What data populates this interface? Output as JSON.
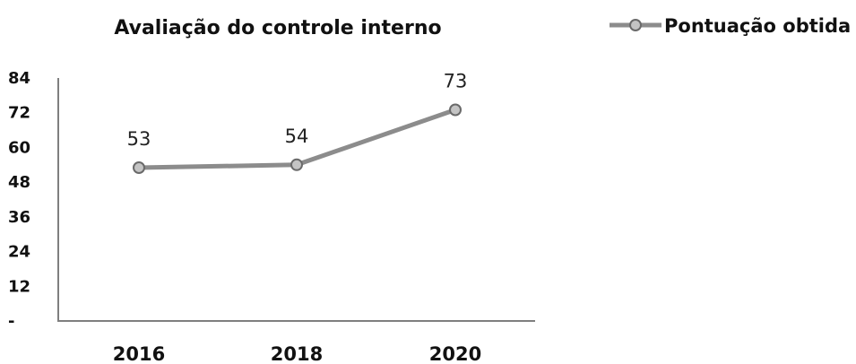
{
  "chart_data": {
    "type": "line",
    "title": "Avaliação do controle interno",
    "categories": [
      "2016",
      "2018",
      "2020"
    ],
    "series": [
      {
        "name": "Pontuação obtida",
        "values": [
          53,
          54,
          73
        ],
        "labels": [
          "53",
          "54",
          "73"
        ]
      }
    ],
    "y_ticks": [
      "-",
      "12",
      "24",
      "36",
      "48",
      "60",
      "72",
      "84"
    ],
    "ylim": [
      0,
      84
    ],
    "xlabel": "",
    "ylabel": "",
    "grid": false,
    "legend_position": "top-right",
    "colors": {
      "line": "#8c8c8c",
      "marker_fill": "#c4c4c4",
      "marker_stroke": "#6a6a6a",
      "axis": "#7f7f7f",
      "text": "#111111"
    }
  }
}
